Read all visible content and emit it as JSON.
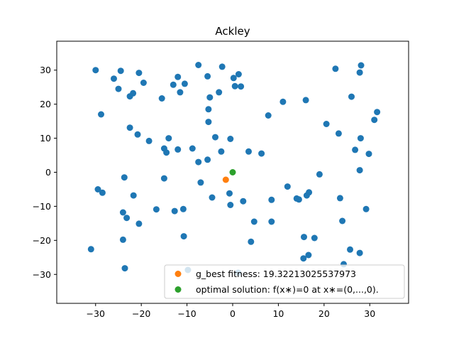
{
  "chart_data": {
    "type": "scatter",
    "title": "Ackley",
    "xlabel": "",
    "ylabel": "",
    "xlim": [
      -38.5,
      38.5
    ],
    "ylim": [
      -38.5,
      38.5
    ],
    "xticks": [
      -30,
      -20,
      -10,
      0,
      10,
      20,
      30
    ],
    "yticks": [
      -30,
      -20,
      -10,
      0,
      10,
      20,
      30
    ],
    "xtick_labels": [
      "−30",
      "−20",
      "−10",
      "0",
      "10",
      "20",
      "30"
    ],
    "ytick_labels": [
      "−30",
      "−20",
      "−10",
      "0",
      "10",
      "20",
      "30"
    ],
    "grid": false,
    "legend_position": "lower right",
    "series": [
      {
        "name": "",
        "color": "#1f77b4",
        "points": [
          [
            -30,
            30
          ],
          [
            -26,
            27.5
          ],
          [
            -25,
            24.5
          ],
          [
            -24.5,
            29.8
          ],
          [
            -22.5,
            22.3
          ],
          [
            -21.8,
            23.2
          ],
          [
            -20.5,
            29.2
          ],
          [
            -19.5,
            26.3
          ],
          [
            -15.5,
            21.7
          ],
          [
            -13,
            25.7
          ],
          [
            -12,
            28
          ],
          [
            -11.5,
            23.5
          ],
          [
            -10.5,
            26
          ],
          [
            -7.5,
            31.5
          ],
          [
            -5.5,
            28.2
          ],
          [
            -5,
            22
          ],
          [
            -3,
            23.5
          ],
          [
            -2.3,
            31
          ],
          [
            0.2,
            27.7
          ],
          [
            1.3,
            28.8
          ],
          [
            0.5,
            25.3
          ],
          [
            1.8,
            25.2
          ],
          [
            -28.8,
            17
          ],
          [
            -5.3,
            18.5
          ],
          [
            -5.3,
            14.8
          ],
          [
            -22.5,
            13.1
          ],
          [
            -20.8,
            11.1
          ],
          [
            -18.3,
            9.2
          ],
          [
            -14,
            10
          ],
          [
            -15,
            7
          ],
          [
            -14.5,
            5.8
          ],
          [
            -12,
            6.7
          ],
          [
            -8.8,
            7
          ],
          [
            -5.5,
            3.7
          ],
          [
            -3.8,
            10.3
          ],
          [
            -2.5,
            6.1
          ],
          [
            -0.5,
            9.8
          ],
          [
            -7.5,
            3
          ],
          [
            3.5,
            6.1
          ],
          [
            6.3,
            5.5
          ],
          [
            7.8,
            16.7
          ],
          [
            11,
            20.7
          ],
          [
            16,
            21.2
          ],
          [
            20.5,
            14.2
          ],
          [
            23.2,
            11.4
          ],
          [
            26,
            22.2
          ],
          [
            27.8,
            29.3
          ],
          [
            28.1,
            31.4
          ],
          [
            22.5,
            30.4
          ],
          [
            26.8,
            6.6
          ],
          [
            28,
            10
          ],
          [
            31,
            15.4
          ],
          [
            31.6,
            17.7
          ],
          [
            29.8,
            5.4
          ],
          [
            27.8,
            0.6
          ],
          [
            19,
            -0.6
          ],
          [
            -23.7,
            -1.5
          ],
          [
            -15,
            -1.8
          ],
          [
            -29.5,
            -5
          ],
          [
            -28.5,
            -6
          ],
          [
            -21.7,
            -6.8
          ],
          [
            -7,
            -3
          ],
          [
            -0.7,
            -6.2
          ],
          [
            -4.5,
            -7.4
          ],
          [
            -0.5,
            -9.6
          ],
          [
            2.3,
            -8.5
          ],
          [
            8.5,
            -8.1
          ],
          [
            12,
            -4.2
          ],
          [
            14,
            -7.7
          ],
          [
            14.5,
            -8
          ],
          [
            16.2,
            -6.8
          ],
          [
            16.7,
            -5.9
          ],
          [
            23.5,
            -7.6
          ],
          [
            29.2,
            -10.8
          ],
          [
            -24,
            -11.8
          ],
          [
            -23.2,
            -13.4
          ],
          [
            -20.5,
            -15.1
          ],
          [
            -16.7,
            -10.9
          ],
          [
            -12.7,
            -11.4
          ],
          [
            -10.8,
            -10.8
          ],
          [
            -24,
            -19.8
          ],
          [
            -10.7,
            -18.8
          ],
          [
            4.7,
            -14.5
          ],
          [
            8.5,
            -14.5
          ],
          [
            24,
            -14.3
          ],
          [
            4,
            -20.4
          ],
          [
            15.6,
            -19
          ],
          [
            17.9,
            -19.3
          ],
          [
            16.6,
            -24.3
          ],
          [
            15.5,
            -25.3
          ],
          [
            25.7,
            -22.7
          ],
          [
            27.8,
            -23.7
          ],
          [
            24.3,
            -27
          ],
          [
            -31,
            -22.6
          ],
          [
            -23.6,
            -28.2
          ],
          [
            -9.8,
            -28.7
          ],
          [
            1.2,
            -29.5
          ]
        ]
      },
      {
        "name": "g_best fitness: 19.32213025537973",
        "color": "#ff7f0e",
        "points": [
          [
            -1.5,
            -2.2
          ]
        ]
      },
      {
        "name": "optimal solution: f(x∗)=0 at x∗=(0,...,0).",
        "color": "#2ca02c",
        "points": [
          [
            0,
            0
          ]
        ]
      }
    ]
  }
}
